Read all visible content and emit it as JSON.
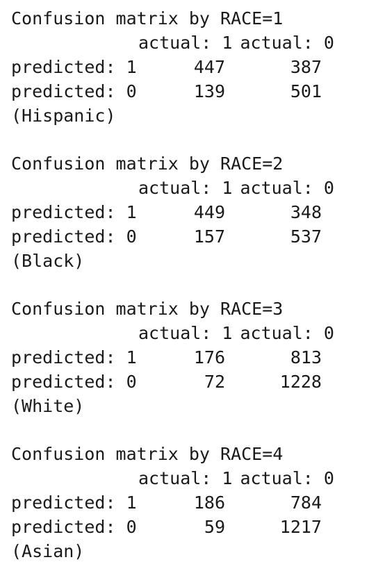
{
  "blocks": [
    {
      "title": "Confusion matrix by RACE=1",
      "col_headers": [
        "actual: 1",
        "actual: 0"
      ],
      "rows": [
        {
          "label": "predicted: 1",
          "values": [
            "447",
            "387"
          ]
        },
        {
          "label": "predicted: 0",
          "values": [
            "139",
            "501"
          ]
        }
      ],
      "group": "(Hispanic)"
    },
    {
      "title": "Confusion matrix by RACE=2",
      "col_headers": [
        "actual: 1",
        "actual: 0"
      ],
      "rows": [
        {
          "label": "predicted: 1",
          "values": [
            "449",
            "348"
          ]
        },
        {
          "label": "predicted: 0",
          "values": [
            "157",
            "537"
          ]
        }
      ],
      "group": "(Black)"
    },
    {
      "title": "Confusion matrix by RACE=3",
      "col_headers": [
        "actual: 1",
        "actual: 0"
      ],
      "rows": [
        {
          "label": "predicted: 1",
          "values": [
            "176",
            "813"
          ]
        },
        {
          "label": "predicted: 0",
          "values": [
            "72",
            "1228"
          ]
        }
      ],
      "group": "(White)"
    },
    {
      "title": "Confusion matrix by RACE=4",
      "col_headers": [
        "actual: 1",
        "actual: 0"
      ],
      "rows": [
        {
          "label": "predicted: 1",
          "values": [
            "186",
            "784"
          ]
        },
        {
          "label": "predicted: 0",
          "values": [
            "59",
            "1217"
          ]
        }
      ],
      "group": "(Asian)"
    }
  ]
}
